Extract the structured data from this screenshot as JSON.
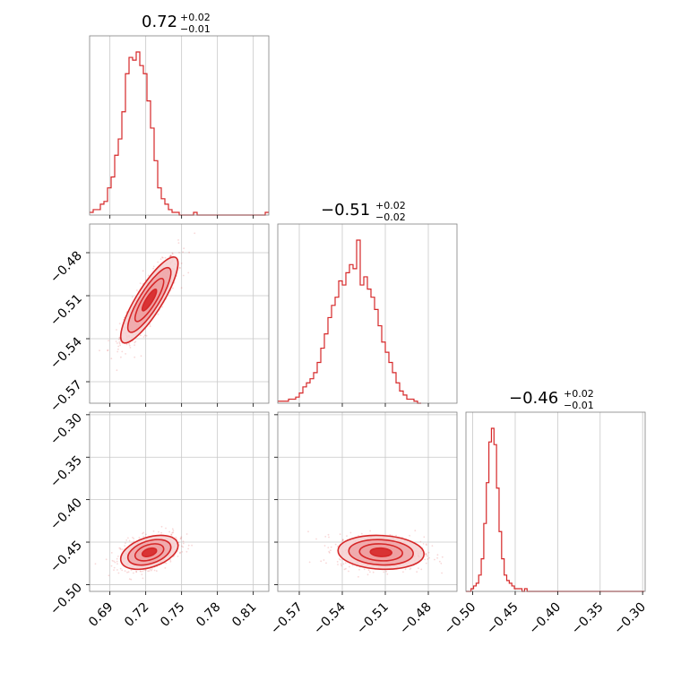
{
  "colors": {
    "main": "#d62728",
    "fill_light": "#f6d0d1",
    "fill_mid": "#ee9ea0",
    "fill_dark": "#d62728",
    "grid": "#c8c8c8"
  },
  "chart_data": {
    "type": "corner",
    "parameters": [
      {
        "title": {
          "median": "0.72",
          "plus": "+0.02",
          "minus": "−0.01"
        },
        "ticks": [
          "0.69",
          "0.72",
          "0.75",
          "0.78",
          "0.81"
        ],
        "tick_values": [
          0.69,
          0.72,
          0.75,
          0.78,
          0.81
        ],
        "range": [
          0.673,
          0.823
        ],
        "histogram": {
          "bin_start": 0.673,
          "bin_width": 0.003,
          "counts": [
            1,
            2,
            2,
            4,
            5,
            10,
            14,
            22,
            28,
            38,
            52,
            58,
            57,
            60,
            55,
            52,
            42,
            32,
            20,
            10,
            6,
            4,
            2,
            1,
            1,
            0,
            0,
            0,
            0,
            1,
            0,
            0,
            0,
            0,
            0,
            0,
            0,
            0,
            0,
            0,
            0,
            0,
            0,
            0,
            0,
            0,
            0,
            0,
            0,
            1
          ]
        }
      },
      {
        "title": {
          "median": "−0.51",
          "plus": "+0.02",
          "minus": "−0.02"
        },
        "ticks": [
          "−0.57",
          "−0.54",
          "−0.51",
          "−0.48"
        ],
        "tick_values": [
          -0.57,
          -0.54,
          -0.51,
          -0.48
        ],
        "range": [
          -0.585,
          -0.46
        ],
        "histogram": {
          "bin_start": -0.585,
          "bin_width": 0.0025,
          "counts": [
            1,
            1,
            1,
            2,
            2,
            3,
            5,
            8,
            10,
            12,
            15,
            20,
            27,
            34,
            42,
            48,
            52,
            60,
            58,
            64,
            68,
            66,
            80,
            58,
            62,
            56,
            52,
            46,
            38,
            30,
            25,
            20,
            15,
            10,
            6,
            4,
            2,
            2,
            1,
            0
          ]
        }
      },
      {
        "title": {
          "median": "−0.46",
          "plus": "+0.02",
          "minus": "−0.01"
        },
        "ticks": [
          "−0.50",
          "−0.45",
          "−0.40",
          "−0.35",
          "−0.30"
        ],
        "tick_values": [
          -0.5,
          -0.45,
          -0.4,
          -0.35,
          -0.3
        ],
        "range": [
          -0.508,
          -0.297
        ],
        "histogram": {
          "bin_start": -0.508,
          "bin_width": 0.003,
          "counts": [
            0,
            0,
            1,
            2,
            3,
            6,
            12,
            25,
            40,
            55,
            60,
            54,
            38,
            22,
            12,
            6,
            4,
            3,
            2,
            1,
            1,
            1,
            0,
            1,
            0,
            0,
            0,
            0,
            0,
            0,
            0,
            0,
            0,
            0,
            0,
            0,
            0,
            0,
            0,
            0,
            0,
            0,
            0,
            0,
            0,
            0,
            0,
            0,
            0,
            0,
            0,
            0,
            0,
            0,
            0,
            0,
            0,
            0,
            0,
            0,
            0,
            0,
            0,
            0,
            0,
            0,
            0,
            0,
            0,
            0
          ]
        }
      }
    ],
    "y_ticks": [
      {
        "row": 1,
        "labels": [
          "−0.48",
          "−0.51",
          "−0.54",
          "−0.57"
        ],
        "values": [
          -0.48,
          -0.51,
          -0.54,
          -0.57
        ],
        "range": [
          -0.585,
          -0.46
        ]
      },
      {
        "row": 2,
        "labels": [
          "−0.30",
          "−0.35",
          "−0.40",
          "−0.45",
          "−0.50"
        ],
        "values": [
          -0.3,
          -0.35,
          -0.4,
          -0.45,
          -0.5
        ],
        "range": [
          -0.508,
          -0.297
        ]
      }
    ],
    "pair_panels": [
      {
        "x_param": 0,
        "y_param": 1,
        "center": [
          0.723,
          -0.513
        ],
        "sd": [
          0.012,
          0.015
        ],
        "corr": 0.85
      },
      {
        "x_param": 0,
        "y_param": 2,
        "center": [
          0.723,
          -0.462
        ],
        "sd": [
          0.012,
          0.01
        ],
        "corr": 0.4
      },
      {
        "x_param": 1,
        "y_param": 2,
        "center": [
          -0.513,
          -0.462
        ],
        "sd": [
          0.015,
          0.01
        ],
        "corr": -0.1
      }
    ]
  }
}
